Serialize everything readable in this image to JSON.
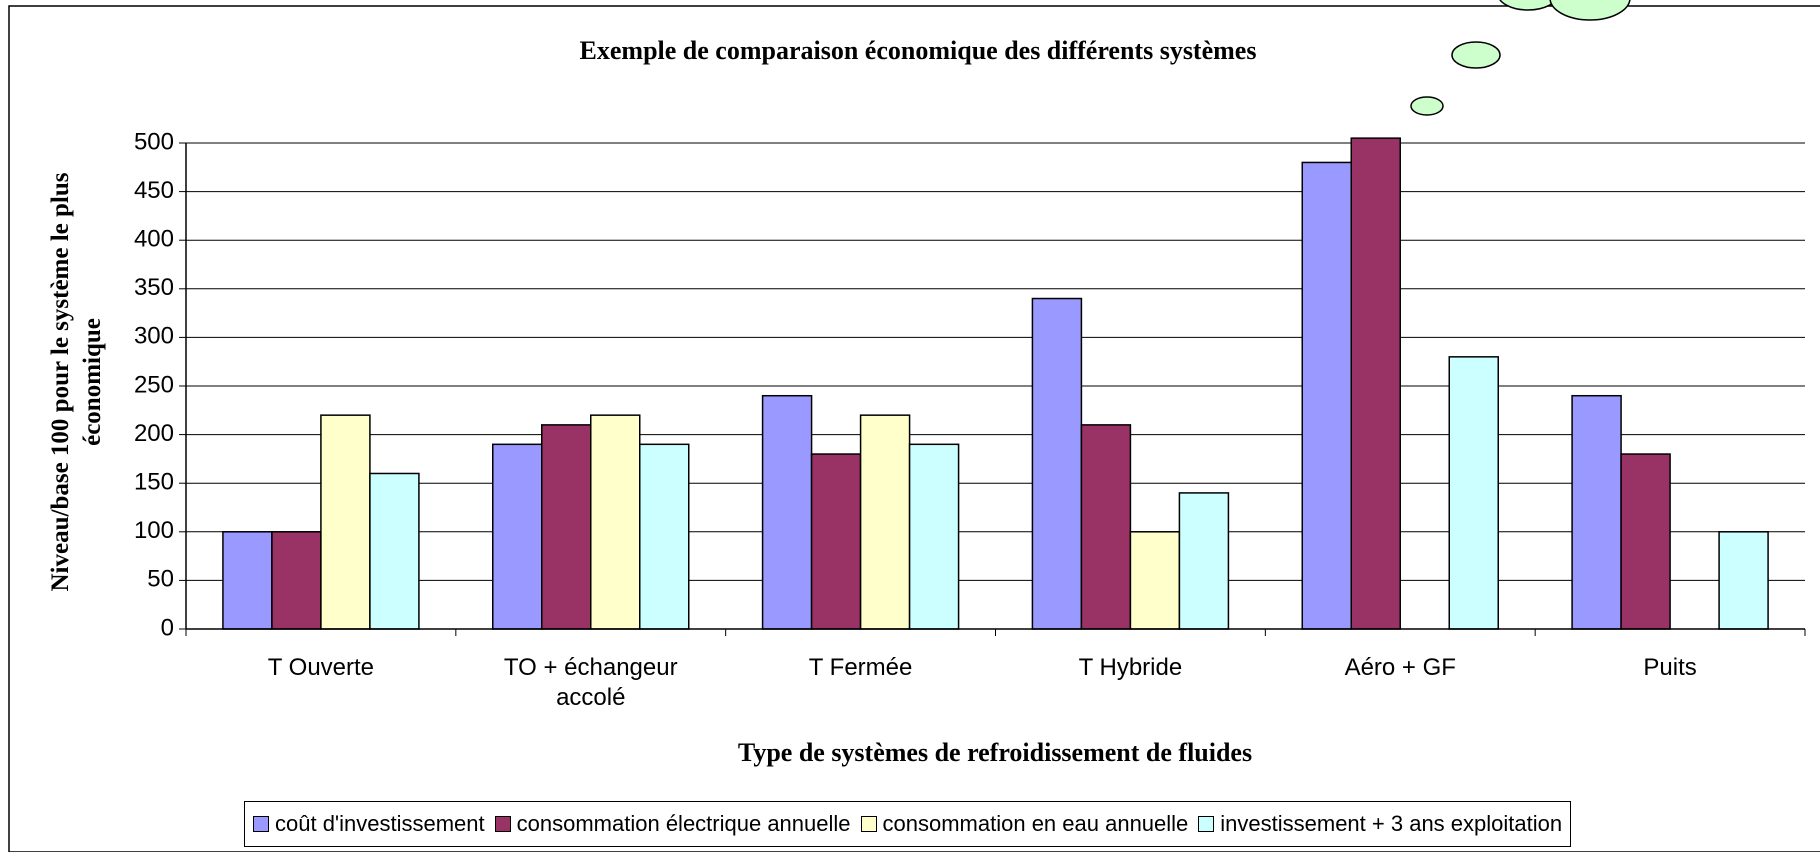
{
  "chart_data": {
    "type": "bar",
    "title": "Exemple de comparaison économique des différents systèmes",
    "x_label": "Type de systèmes de refroidissement de fluides",
    "y_label": "Niveau/base 100 pour le système le plus économique",
    "categories": [
      "T Ouverte",
      "TO + échangeur accolé",
      "T Fermée",
      "T Hybride",
      "Aéro + GF",
      "Puits"
    ],
    "series": [
      {
        "name": "coût d'investissement",
        "color": "#9999ff",
        "values": [
          100,
          190,
          240,
          340,
          480,
          240
        ]
      },
      {
        "name": "consommation électrique annuelle",
        "color": "#993366",
        "values": [
          100,
          210,
          180,
          210,
          505,
          180
        ]
      },
      {
        "name": "consommation en eau annuelle",
        "color": "#ffffcc",
        "values": [
          220,
          220,
          220,
          100,
          null,
          null
        ]
      },
      {
        "name": "investissement + 3 ans exploitation",
        "color": "#ccffff",
        "values": [
          160,
          190,
          190,
          140,
          280,
          100
        ]
      }
    ],
    "ylim": [
      0,
      500
    ],
    "yticks": [
      0,
      50,
      100,
      150,
      200,
      250,
      300,
      350,
      400,
      450,
      500
    ],
    "grid": true
  }
}
